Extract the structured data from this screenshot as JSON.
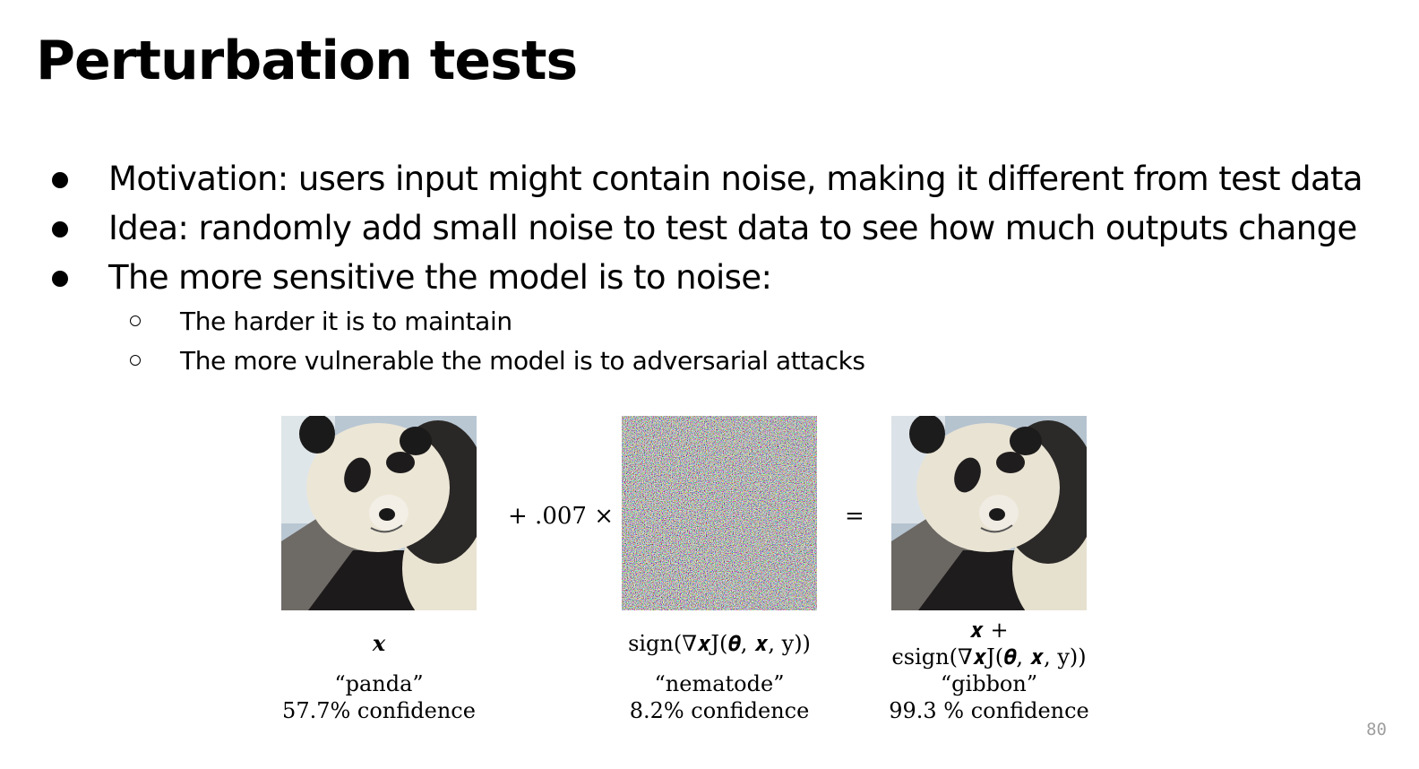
{
  "slide": {
    "title": "Perturbation tests",
    "bullets": [
      "Motivation: users input might contain noise, making it different from test data",
      "Idea: randomly add small noise to test data to see how much outputs change",
      "The more sensitive the model is to noise:"
    ],
    "sub_bullets": [
      "The harder it is to maintain",
      "The more vulnerable the model is to adversarial attacks"
    ],
    "page_number": "80"
  },
  "figure": {
    "operator_scale": "+ .007 ×",
    "operator_equals": "=",
    "panels": [
      {
        "formula": "𝒙",
        "class_label": "“panda”",
        "confidence": "57.7% confidence"
      },
      {
        "formula": "sign(∇𝒙J(𝜽, 𝒙, y))",
        "class_label": "“nematode”",
        "confidence": "8.2% confidence"
      },
      {
        "formula_line1": "𝒙 +",
        "formula_line2": "ϵsign(∇𝒙J(𝜽, 𝒙, y))",
        "class_label": "“gibbon”",
        "confidence": "99.3 % confidence"
      }
    ]
  }
}
